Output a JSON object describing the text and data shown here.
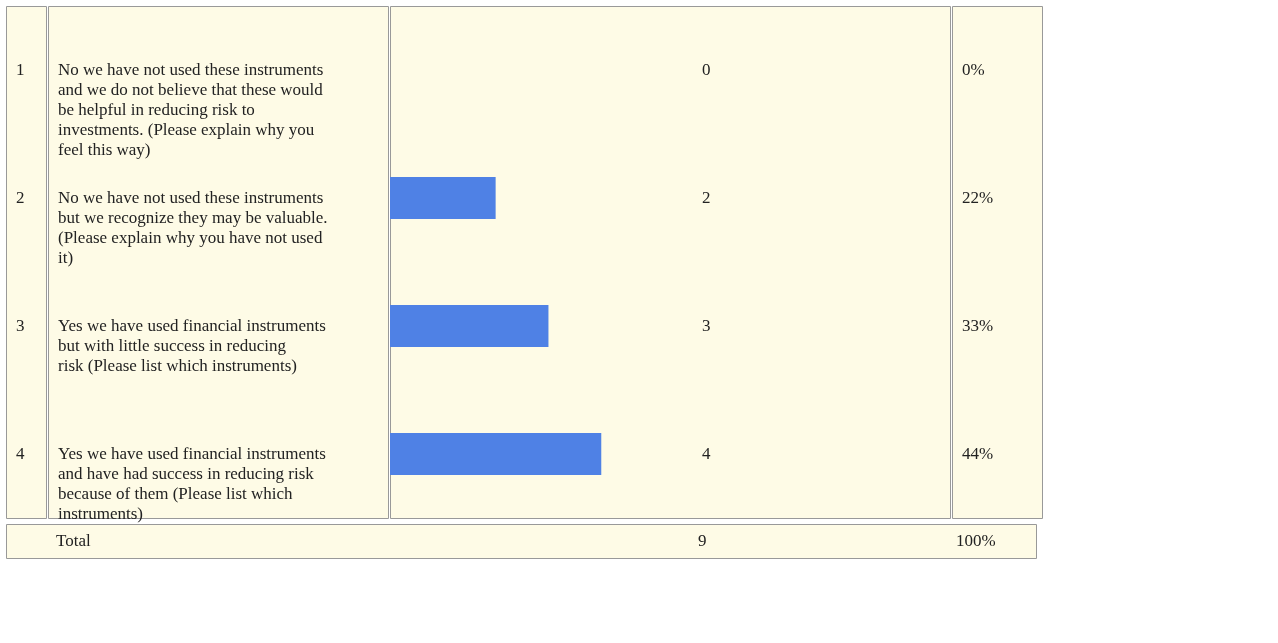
{
  "chart_data": {
    "type": "bar",
    "orientation": "horizontal",
    "categories": [
      "No we have not used these instruments and we do not believe that these would be helpful in reducing risk to investments. (Please explain why you feel this way)",
      "No we have not used these instruments but we recognize they may be valuable. (Please explain why you have not used it)",
      "Yes we have used financial instruments but with little success in reducing risk (Please list which instruments)",
      "Yes we have used financial instruments and have had success in reducing risk because of them (Please list which instruments)"
    ],
    "values": [
      0,
      2,
      3,
      4
    ],
    "color": "#4f81e5",
    "data_labels": true,
    "annotations": [
      "1",
      "2",
      "3",
      "4",
      "0%",
      "22%",
      "33%",
      "44%",
      "Total",
      "9",
      "100%"
    ]
  }
}
